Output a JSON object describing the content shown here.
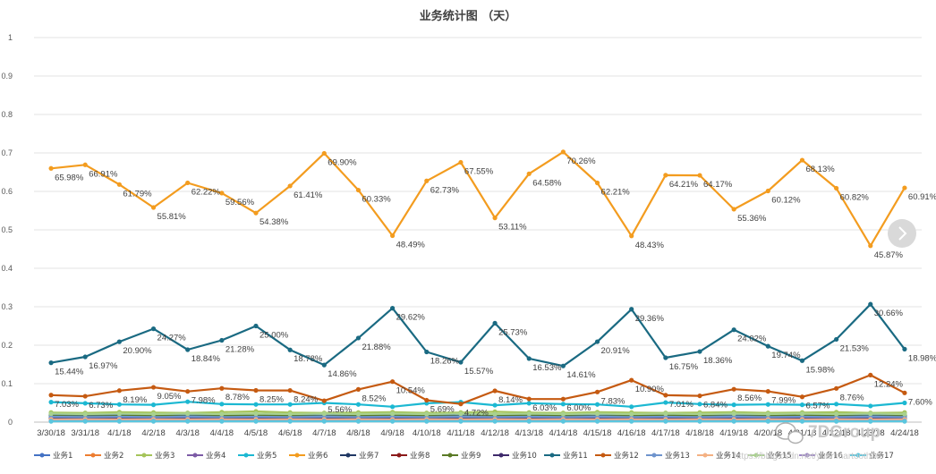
{
  "chart_data": {
    "type": "line",
    "title": "业务统计图 （天）",
    "xlabel": "",
    "ylabel": "",
    "ylim": [
      0,
      1
    ],
    "yticks": [
      "0",
      "0.1",
      "0.2",
      "0.3",
      "0.4",
      "0.5",
      "0.6",
      "0.7",
      "0.8",
      "0.9",
      "1"
    ],
    "grid": true,
    "legend_position": "bottom",
    "categories": [
      "3/30/18",
      "3/31/18",
      "4/1/18",
      "4/2/18",
      "4/3/18",
      "4/4/18",
      "4/5/18",
      "4/6/18",
      "4/7/18",
      "4/8/18",
      "4/9/18",
      "4/10/18",
      "4/11/18",
      "4/12/18",
      "4/13/18",
      "4/14/18",
      "4/15/18",
      "4/16/18",
      "4/17/18",
      "4/18/18",
      "4/19/18",
      "4/20/18",
      "4/21/18",
      "4/22/18",
      "4/23/18",
      "4/24/18"
    ],
    "series": [
      {
        "name": "业务1",
        "color": "#4472c4",
        "values": [
          0.02,
          0.018,
          0.019,
          0.02,
          0.018,
          0.019,
          0.02,
          0.018,
          0.017,
          0.018,
          0.02,
          0.019,
          0.018,
          0.02,
          0.019,
          0.018,
          0.017,
          0.019,
          0.018,
          0.02,
          0.019,
          0.018,
          0.017,
          0.019,
          0.018,
          0.019
        ]
      },
      {
        "name": "业务2",
        "color": "#ed7d31",
        "values": [
          0.012,
          0.011,
          0.012,
          0.013,
          0.012,
          0.011,
          0.012,
          0.013,
          0.011,
          0.012,
          0.013,
          0.012,
          0.011,
          0.012,
          0.013,
          0.012,
          0.011,
          0.012,
          0.013,
          0.012,
          0.011,
          0.012,
          0.013,
          0.012,
          0.011,
          0.012
        ]
      },
      {
        "name": "业务3",
        "color": "#a5c45a",
        "values": [
          0.025,
          0.024,
          0.026,
          0.025,
          0.024,
          0.026,
          0.028,
          0.025,
          0.024,
          0.025,
          0.026,
          0.024,
          0.025,
          0.027,
          0.025,
          0.024,
          0.026,
          0.025,
          0.024,
          0.025,
          0.026,
          0.024,
          0.025,
          0.026,
          0.024,
          0.025
        ]
      },
      {
        "name": "业务4",
        "color": "#7c5ba6",
        "values": [
          0.008,
          0.008,
          0.009,
          0.008,
          0.009,
          0.008,
          0.009,
          0.008,
          0.009,
          0.008,
          0.009,
          0.008,
          0.009,
          0.008,
          0.009,
          0.008,
          0.009,
          0.008,
          0.009,
          0.008,
          0.009,
          0.008,
          0.009,
          0.008,
          0.009,
          0.008
        ]
      },
      {
        "name": "业务5",
        "color": "#1cb8d2",
        "values": [
          0.052,
          0.049,
          0.046,
          0.045,
          0.053,
          0.047,
          0.046,
          0.046,
          0.05,
          0.046,
          0.04,
          0.049,
          0.052,
          0.044,
          0.049,
          0.047,
          0.046,
          0.04,
          0.051,
          0.047,
          0.045,
          0.046,
          0.045,
          0.047,
          0.042,
          0.05
        ]
      },
      {
        "name": "业务6",
        "color": "#f39c1f",
        "values": [
          0.6598,
          0.6691,
          0.6179,
          0.5581,
          0.6222,
          0.5956,
          0.5438,
          0.6141,
          0.699,
          0.6033,
          0.4849,
          0.6273,
          0.6755,
          0.5311,
          0.6458,
          0.7026,
          0.6221,
          0.4843,
          0.6421,
          0.6417,
          0.5536,
          0.6012,
          0.6813,
          0.6082,
          0.4587,
          0.6091
        ]
      },
      {
        "name": "业务7",
        "color": "#203864",
        "values": [
          0.005,
          0.006,
          0.005,
          0.006,
          0.005,
          0.006,
          0.005,
          0.006,
          0.005,
          0.006,
          0.005,
          0.006,
          0.005,
          0.006,
          0.005,
          0.006,
          0.005,
          0.006,
          0.005,
          0.006,
          0.005,
          0.006,
          0.005,
          0.006,
          0.005,
          0.006
        ]
      },
      {
        "name": "业务8",
        "color": "#8b1a1a",
        "values": [
          0.004,
          0.004,
          0.004,
          0.004,
          0.004,
          0.004,
          0.004,
          0.004,
          0.004,
          0.004,
          0.004,
          0.004,
          0.004,
          0.004,
          0.004,
          0.004,
          0.004,
          0.004,
          0.004,
          0.004,
          0.004,
          0.004,
          0.004,
          0.004,
          0.004,
          0.004
        ]
      },
      {
        "name": "业务9",
        "color": "#5a7a26",
        "values": [
          0.016,
          0.015,
          0.016,
          0.017,
          0.015,
          0.016,
          0.017,
          0.016,
          0.015,
          0.016,
          0.017,
          0.016,
          0.015,
          0.016,
          0.017,
          0.016,
          0.015,
          0.016,
          0.017,
          0.016,
          0.015,
          0.016,
          0.017,
          0.016,
          0.015,
          0.016
        ]
      },
      {
        "name": "业务10",
        "color": "#3e2a6b",
        "values": [
          0.01,
          0.01,
          0.011,
          0.01,
          0.011,
          0.01,
          0.011,
          0.01,
          0.011,
          0.01,
          0.011,
          0.01,
          0.011,
          0.01,
          0.011,
          0.01,
          0.011,
          0.01,
          0.011,
          0.01,
          0.011,
          0.01,
          0.011,
          0.01,
          0.011,
          0.01
        ]
      },
      {
        "name": "业务11",
        "color": "#1a6a82",
        "values": [
          0.1544,
          0.1697,
          0.209,
          0.2427,
          0.1884,
          0.2128,
          0.25,
          0.1878,
          0.1486,
          0.2188,
          0.2962,
          0.1826,
          0.1557,
          0.2573,
          0.1653,
          0.1461,
          0.2091,
          0.2936,
          0.1675,
          0.1836,
          0.2402,
          0.1974,
          0.1598,
          0.2153,
          0.3066,
          0.1898
        ]
      },
      {
        "name": "业务12",
        "color": "#c55a11",
        "values": [
          0.0703,
          0.0673,
          0.0819,
          0.0905,
          0.0798,
          0.0878,
          0.0825,
          0.0824,
          0.0556,
          0.0852,
          0.1054,
          0.0569,
          0.0472,
          0.0814,
          0.0603,
          0.06,
          0.0783,
          0.109,
          0.0701,
          0.0684,
          0.0856,
          0.0799,
          0.0657,
          0.0876,
          0.1224,
          0.076
        ]
      },
      {
        "name": "业务13",
        "color": "#6f94cd",
        "values": [
          0.014,
          0.013,
          0.014,
          0.013,
          0.014,
          0.013,
          0.014,
          0.013,
          0.014,
          0.013,
          0.014,
          0.013,
          0.014,
          0.013,
          0.014,
          0.013,
          0.014,
          0.013,
          0.014,
          0.013,
          0.014,
          0.013,
          0.014,
          0.013,
          0.014,
          0.013
        ]
      },
      {
        "name": "业务14",
        "color": "#f4b183",
        "values": [
          0.007,
          0.007,
          0.007,
          0.007,
          0.007,
          0.007,
          0.007,
          0.007,
          0.007,
          0.007,
          0.007,
          0.007,
          0.007,
          0.007,
          0.007,
          0.007,
          0.007,
          0.007,
          0.007,
          0.007,
          0.007,
          0.007,
          0.007,
          0.007,
          0.007,
          0.007
        ]
      },
      {
        "name": "业务15",
        "color": "#a9d18e",
        "values": [
          0.022,
          0.021,
          0.022,
          0.021,
          0.022,
          0.021,
          0.022,
          0.021,
          0.022,
          0.021,
          0.022,
          0.021,
          0.022,
          0.021,
          0.022,
          0.021,
          0.022,
          0.021,
          0.022,
          0.021,
          0.022,
          0.021,
          0.022,
          0.021,
          0.022,
          0.021
        ]
      },
      {
        "name": "业务16",
        "color": "#9e88c4",
        "values": [
          0.003,
          0.003,
          0.003,
          0.003,
          0.003,
          0.003,
          0.003,
          0.003,
          0.003,
          0.003,
          0.003,
          0.003,
          0.003,
          0.003,
          0.003,
          0.003,
          0.003,
          0.003,
          0.003,
          0.003,
          0.003,
          0.003,
          0.003,
          0.003,
          0.003,
          0.003
        ]
      },
      {
        "name": "业务17",
        "color": "#5bc6de",
        "values": [
          0.002,
          0.002,
          0.002,
          0.002,
          0.002,
          0.002,
          0.002,
          0.002,
          0.002,
          0.002,
          0.002,
          0.002,
          0.002,
          0.002,
          0.002,
          0.002,
          0.002,
          0.002,
          0.002,
          0.002,
          0.002,
          0.002,
          0.002,
          0.002,
          0.002,
          0.002
        ]
      }
    ],
    "data_labels": [
      {
        "series": "业务6",
        "labels": [
          "65.98%",
          "66.91%",
          "61.79%",
          "55.81%",
          "62.22%",
          "59.56%",
          "54.38%",
          "61.41%",
          "69.90%",
          "60.33%",
          "48.49%",
          "62.73%",
          "67.55%",
          "53.11%",
          "64.58%",
          "70.26%",
          "62.21%",
          "48.43%",
          "64.21%",
          "64.17%",
          "55.36%",
          "60.12%",
          "68.13%",
          "60.82%",
          "45.87%",
          "60.91%"
        ]
      },
      {
        "series": "业务11",
        "labels": [
          "15.44%",
          "16.97%",
          "20.90%",
          "24.27%",
          "18.84%",
          "21.28%",
          "25.00%",
          "18.78%",
          "14.86%",
          "21.88%",
          "29.62%",
          "18.26%",
          "15.57%",
          "25.73%",
          "16.53%",
          "14.61%",
          "20.91%",
          "29.36%",
          "16.75%",
          "18.36%",
          "24.02%",
          "19.74%",
          "15.98%",
          "21.53%",
          "30.66%",
          "18.98%"
        ]
      },
      {
        "series": "业务12",
        "labels": [
          "7.03%",
          "6.73%",
          "8.19%",
          "9.05%",
          "7.98%",
          "8.78%",
          "8.25%",
          "8.24%",
          "5.56%",
          "8.52%",
          "10.54%",
          "5.69%",
          "4.72%",
          "8.14%",
          "6.03%",
          "6.00%",
          "7.83%",
          "10.90%",
          "7.01%",
          "6.84%",
          "8.56%",
          "7.99%",
          "6.57%",
          "8.76%",
          "12.24%",
          "7.60%"
        ]
      }
    ]
  },
  "watermark": {
    "text": "https://blog.csdn.net/yuanmartooth00",
    "brand": "7DGroup"
  }
}
